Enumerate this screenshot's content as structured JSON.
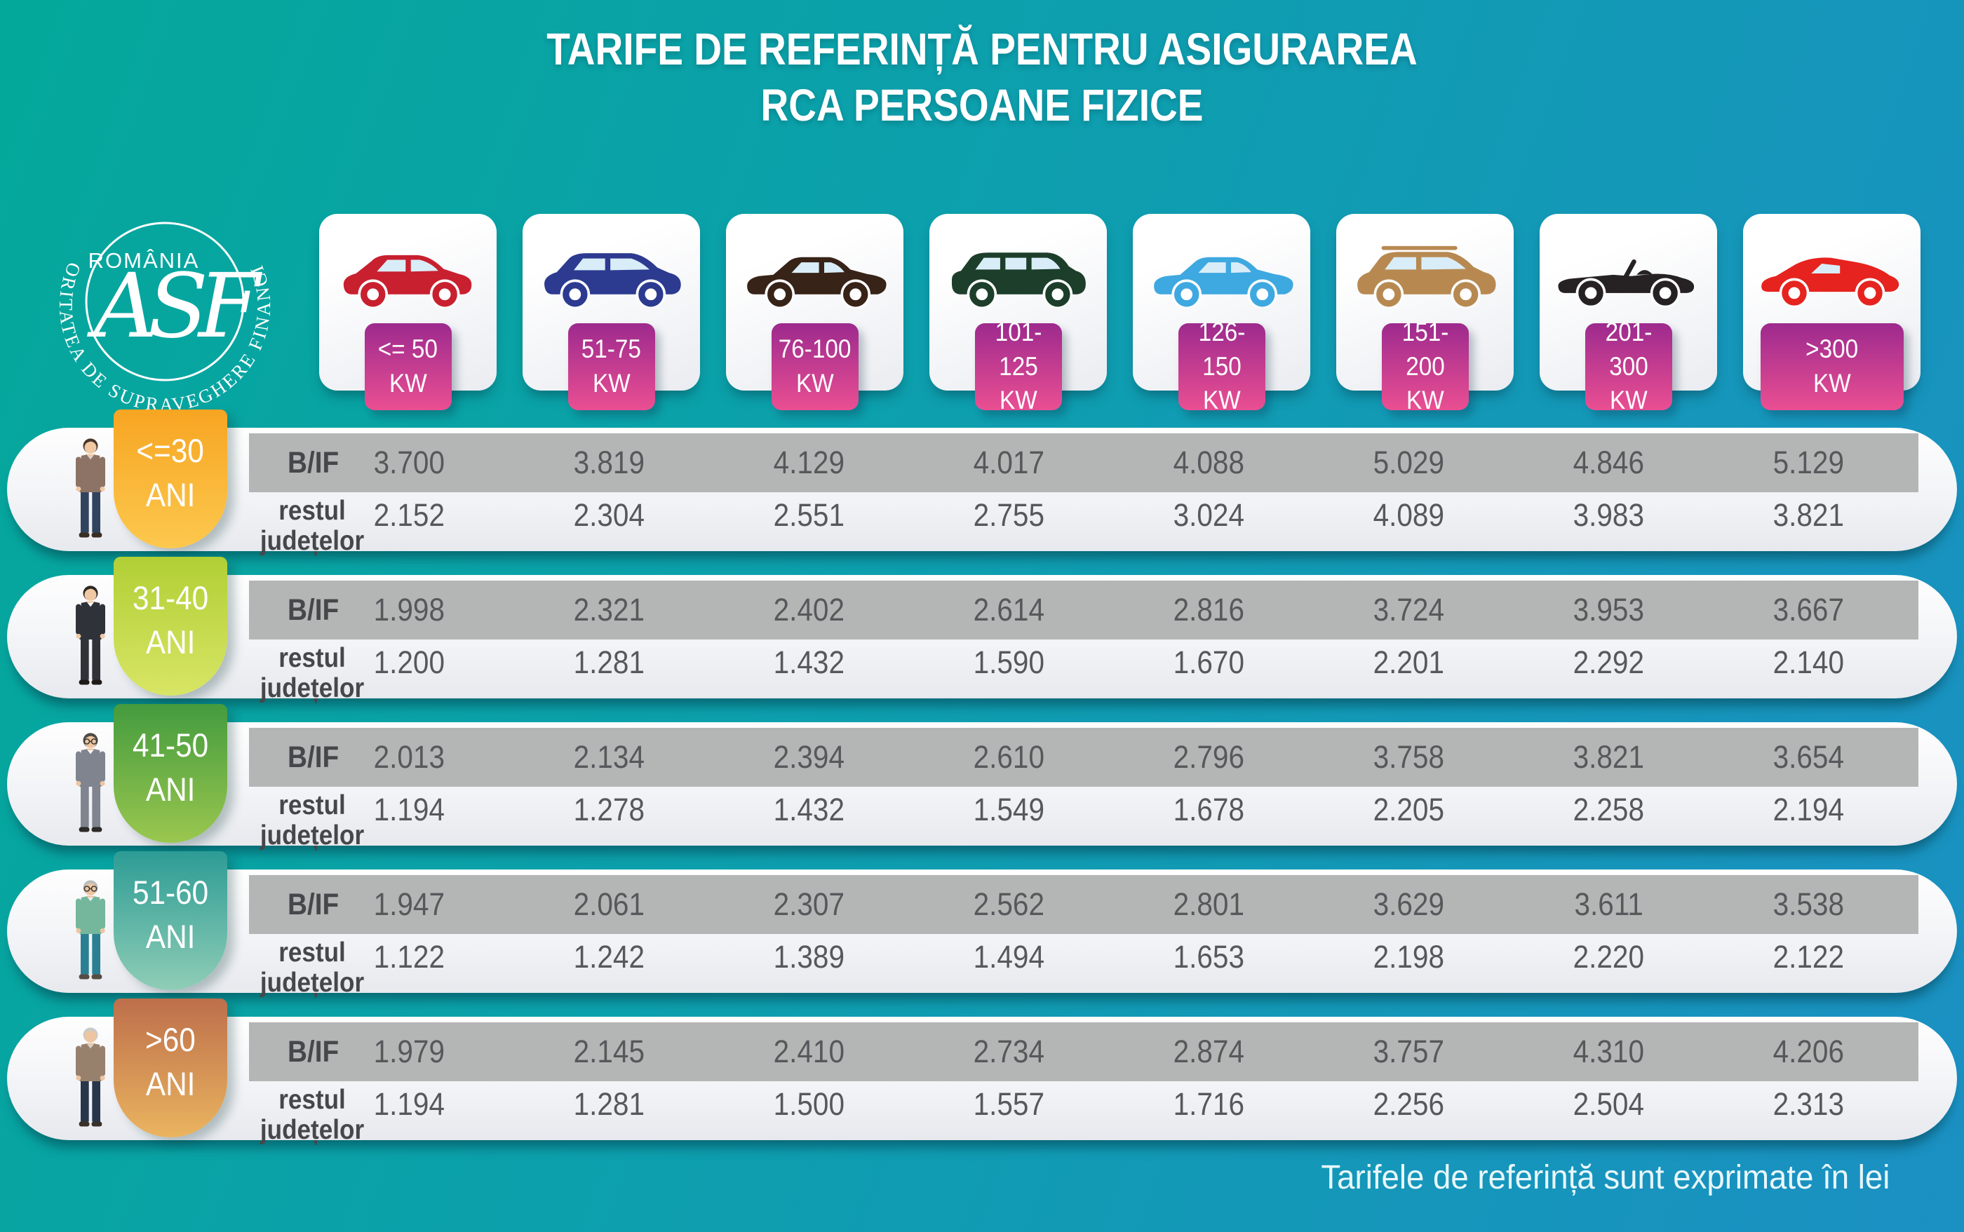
{
  "title": {
    "line1": "TARIFE DE REFERINȚĂ PENTRU ASIGURAREA",
    "line2": "RCA PERSOANE FIZICE"
  },
  "logo": {
    "country": "ROMÂNIA",
    "monogram": "ASF",
    "arc_text": "AUTORITATEA DE SUPRAVEGHERE FINANCIARĂ"
  },
  "footer_note": "Tarifele de referință sunt exprimate în lei",
  "kw_badge_gradient": [
    "#9d2a8e",
    "#ea4f92"
  ],
  "row_labels": {
    "bif": "B/IF",
    "rest": "restul județelor"
  },
  "power_columns": [
    {
      "icon": "city-car-icon",
      "car_color": "#c8202f",
      "range": "<= 50",
      "unit": "KW"
    },
    {
      "icon": "compact-suv-icon",
      "car_color": "#2c3a90",
      "range": "51-75",
      "unit": "KW"
    },
    {
      "icon": "sedan-icon",
      "car_color": "#372317",
      "range": "76-100",
      "unit": "KW"
    },
    {
      "icon": "minivan-icon",
      "car_color": "#1c3e2a",
      "range": "101-125",
      "unit": "KW"
    },
    {
      "icon": "blue-sedan-icon",
      "car_color": "#3ea8e0",
      "range": "126-150",
      "unit": "KW"
    },
    {
      "icon": "large-suv-icon",
      "car_color": "#b78951",
      "range": "151-200",
      "unit": "KW"
    },
    {
      "icon": "convertible-icon",
      "car_color": "#262122",
      "range": "201-300",
      "unit": "KW"
    },
    {
      "icon": "sports-car-icon",
      "car_color": "#e6231e",
      "range": ">300",
      "unit": "KW",
      "wide_badge": true
    }
  ],
  "age_rows": [
    {
      "age_range": "<=30",
      "age_suffix": "ANI",
      "badge_gradient": [
        "#f7a522",
        "#fcc84e"
      ],
      "person": {
        "hair": "#4a3629",
        "skin": "#f0c9a4",
        "top": "#8d7365",
        "shirt": "#ded2c4",
        "pants": "#31445e",
        "shoes": "#3a2d24",
        "glasses": false
      },
      "bif_values": [
        "3.700",
        "3.819",
        "4.129",
        "4.017",
        "4.088",
        "5.029",
        "4.846",
        "5.129"
      ],
      "rest_values": [
        "2.152",
        "2.304",
        "2.551",
        "2.755",
        "3.024",
        "4.089",
        "3.983",
        "3.821"
      ]
    },
    {
      "age_range": "31-40",
      "age_suffix": "ANI",
      "badge_gradient": [
        "#b1cf35",
        "#d8e565"
      ],
      "person": {
        "hair": "#2e2823",
        "skin": "#f0c9a4",
        "top": "#2f3238",
        "shirt": "#ffffff",
        "pants": "#2f3238",
        "shoes": "#1d1a18",
        "glasses": false
      },
      "bif_values": [
        "1.998",
        "2.321",
        "2.402",
        "2.614",
        "2.816",
        "3.724",
        "3.953",
        "3.667"
      ],
      "rest_values": [
        "1.200",
        "1.281",
        "1.432",
        "1.590",
        "1.670",
        "2.201",
        "2.292",
        "2.140"
      ]
    },
    {
      "age_range": "41-50",
      "age_suffix": "ANI",
      "badge_gradient": [
        "#449b3e",
        "#9ac74f"
      ],
      "person": {
        "hair": "#4e4a45",
        "skin": "#edc5a0",
        "top": "#80848f",
        "shirt": "#ffffff",
        "pants": "#80848f",
        "shoes": "#2c2a28",
        "glasses": true
      },
      "bif_values": [
        "2.013",
        "2.134",
        "2.394",
        "2.610",
        "2.796",
        "3.758",
        "3.821",
        "3.654"
      ],
      "rest_values": [
        "1.194",
        "1.278",
        "1.432",
        "1.549",
        "1.678",
        "2.205",
        "2.258",
        "2.194"
      ]
    },
    {
      "age_range": "51-60",
      "age_suffix": "ANI",
      "badge_gradient": [
        "#2d9c95",
        "#8fcdb6"
      ],
      "person": {
        "hair": "#b9bcbc",
        "skin": "#edc5a0",
        "top": "#74b79c",
        "shirt": "#e9eded",
        "pants": "#2b7f92",
        "shoes": "#564c42",
        "glasses": true
      },
      "bif_values": [
        "1.947",
        "2.061",
        "2.307",
        "2.562",
        "2.801",
        "3.629",
        "3.611",
        "3.538"
      ],
      "rest_values": [
        "1.122",
        "1.242",
        "1.389",
        "1.494",
        "1.653",
        "2.198",
        "2.220",
        "2.122"
      ]
    },
    {
      "age_range": ">60",
      "age_suffix": "ANI",
      "badge_gradient": [
        "#bd6f4b",
        "#eab45f"
      ],
      "person": {
        "hair": "#c9cbca",
        "skin": "#edc5a0",
        "top": "#97816d",
        "shirt": "#d9d3c6",
        "pants": "#27364a",
        "shoes": "#39302a",
        "glasses": false
      },
      "bif_values": [
        "1.979",
        "2.145",
        "2.410",
        "2.734",
        "2.874",
        "3.757",
        "4.310",
        "4.206"
      ],
      "rest_values": [
        "1.194",
        "1.281",
        "1.500",
        "1.557",
        "1.716",
        "2.256",
        "2.504",
        "2.313"
      ]
    }
  ],
  "chart_data": {
    "type": "table",
    "title": "TARIFE DE REFERINȚĂ PENTRU ASIGURAREA RCA PERSOANE FIZICE",
    "unit": "lei",
    "columns_kw": [
      "<=50",
      "51-75",
      "76-100",
      "101-125",
      "126-150",
      "151-200",
      "201-300",
      ">300"
    ],
    "rows": [
      {
        "age": "<=30",
        "region": "B/IF",
        "values": [
          3700,
          3819,
          4129,
          4017,
          4088,
          5029,
          4846,
          5129
        ]
      },
      {
        "age": "<=30",
        "region": "restul județelor",
        "values": [
          2152,
          2304,
          2551,
          2755,
          3024,
          4089,
          3983,
          3821
        ]
      },
      {
        "age": "31-40",
        "region": "B/IF",
        "values": [
          1998,
          2321,
          2402,
          2614,
          2816,
          3724,
          3953,
          3667
        ]
      },
      {
        "age": "31-40",
        "region": "restul județelor",
        "values": [
          1200,
          1281,
          1432,
          1590,
          1670,
          2201,
          2292,
          2140
        ]
      },
      {
        "age": "41-50",
        "region": "B/IF",
        "values": [
          2013,
          2134,
          2394,
          2610,
          2796,
          3758,
          3821,
          3654
        ]
      },
      {
        "age": "41-50",
        "region": "restul județelor",
        "values": [
          1194,
          1278,
          1432,
          1549,
          1678,
          2205,
          2258,
          2194
        ]
      },
      {
        "age": "51-60",
        "region": "B/IF",
        "values": [
          1947,
          2061,
          2307,
          2562,
          2801,
          3629,
          3611,
          3538
        ]
      },
      {
        "age": "51-60",
        "region": "restul județelor",
        "values": [
          1122,
          1242,
          1389,
          1494,
          1653,
          2198,
          2220,
          2122
        ]
      },
      {
        "age": ">60",
        "region": "B/IF",
        "values": [
          1979,
          2145,
          2410,
          2734,
          2874,
          3757,
          4310,
          4206
        ]
      },
      {
        "age": ">60",
        "region": "restul județelor",
        "values": [
          1194,
          1281,
          1500,
          1557,
          1716,
          2256,
          2504,
          2313
        ]
      }
    ]
  }
}
